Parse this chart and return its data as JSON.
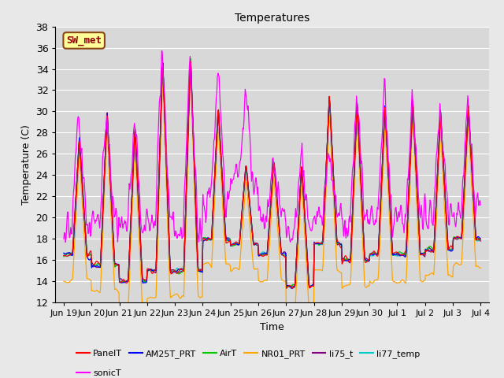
{
  "title": "Temperatures",
  "xlabel": "Time",
  "ylabel": "Temperature (C)",
  "ylim": [
    12,
    38
  ],
  "ylim_display": [
    12,
    38
  ],
  "annotation": "SW_met",
  "annotation_color": "#8B0000",
  "background_color": "#e8e8e8",
  "plot_bg_color": "#d8d8d8",
  "grid_color": "#ffffff",
  "series_colors": {
    "PanelT": "#ff0000",
    "AM25T_PRT": "#0000ff",
    "AirT": "#00cc00",
    "NR01_PRT": "#ffa500",
    "li75_t": "#800080",
    "li77_temp": "#00cccc",
    "sonicT": "#ff00ff"
  },
  "xtick_labels": [
    "Jun 19",
    "Jun 20",
    "Jun 21",
    "Jun 22",
    "Jun 23",
    "Jun 24",
    "Jun 25",
    "Jun 26",
    "Jun 27",
    "Jun 28",
    "Jun 29",
    "Jun 30",
    "Jul 1",
    "Jul 2",
    "Jul 3",
    "Jul 4"
  ],
  "legend_entries": [
    "PanelT",
    "AM25T_PRT",
    "AirT",
    "NR01_PRT",
    "li75_t",
    "li77_temp",
    "sonicT"
  ],
  "font_size": 9
}
